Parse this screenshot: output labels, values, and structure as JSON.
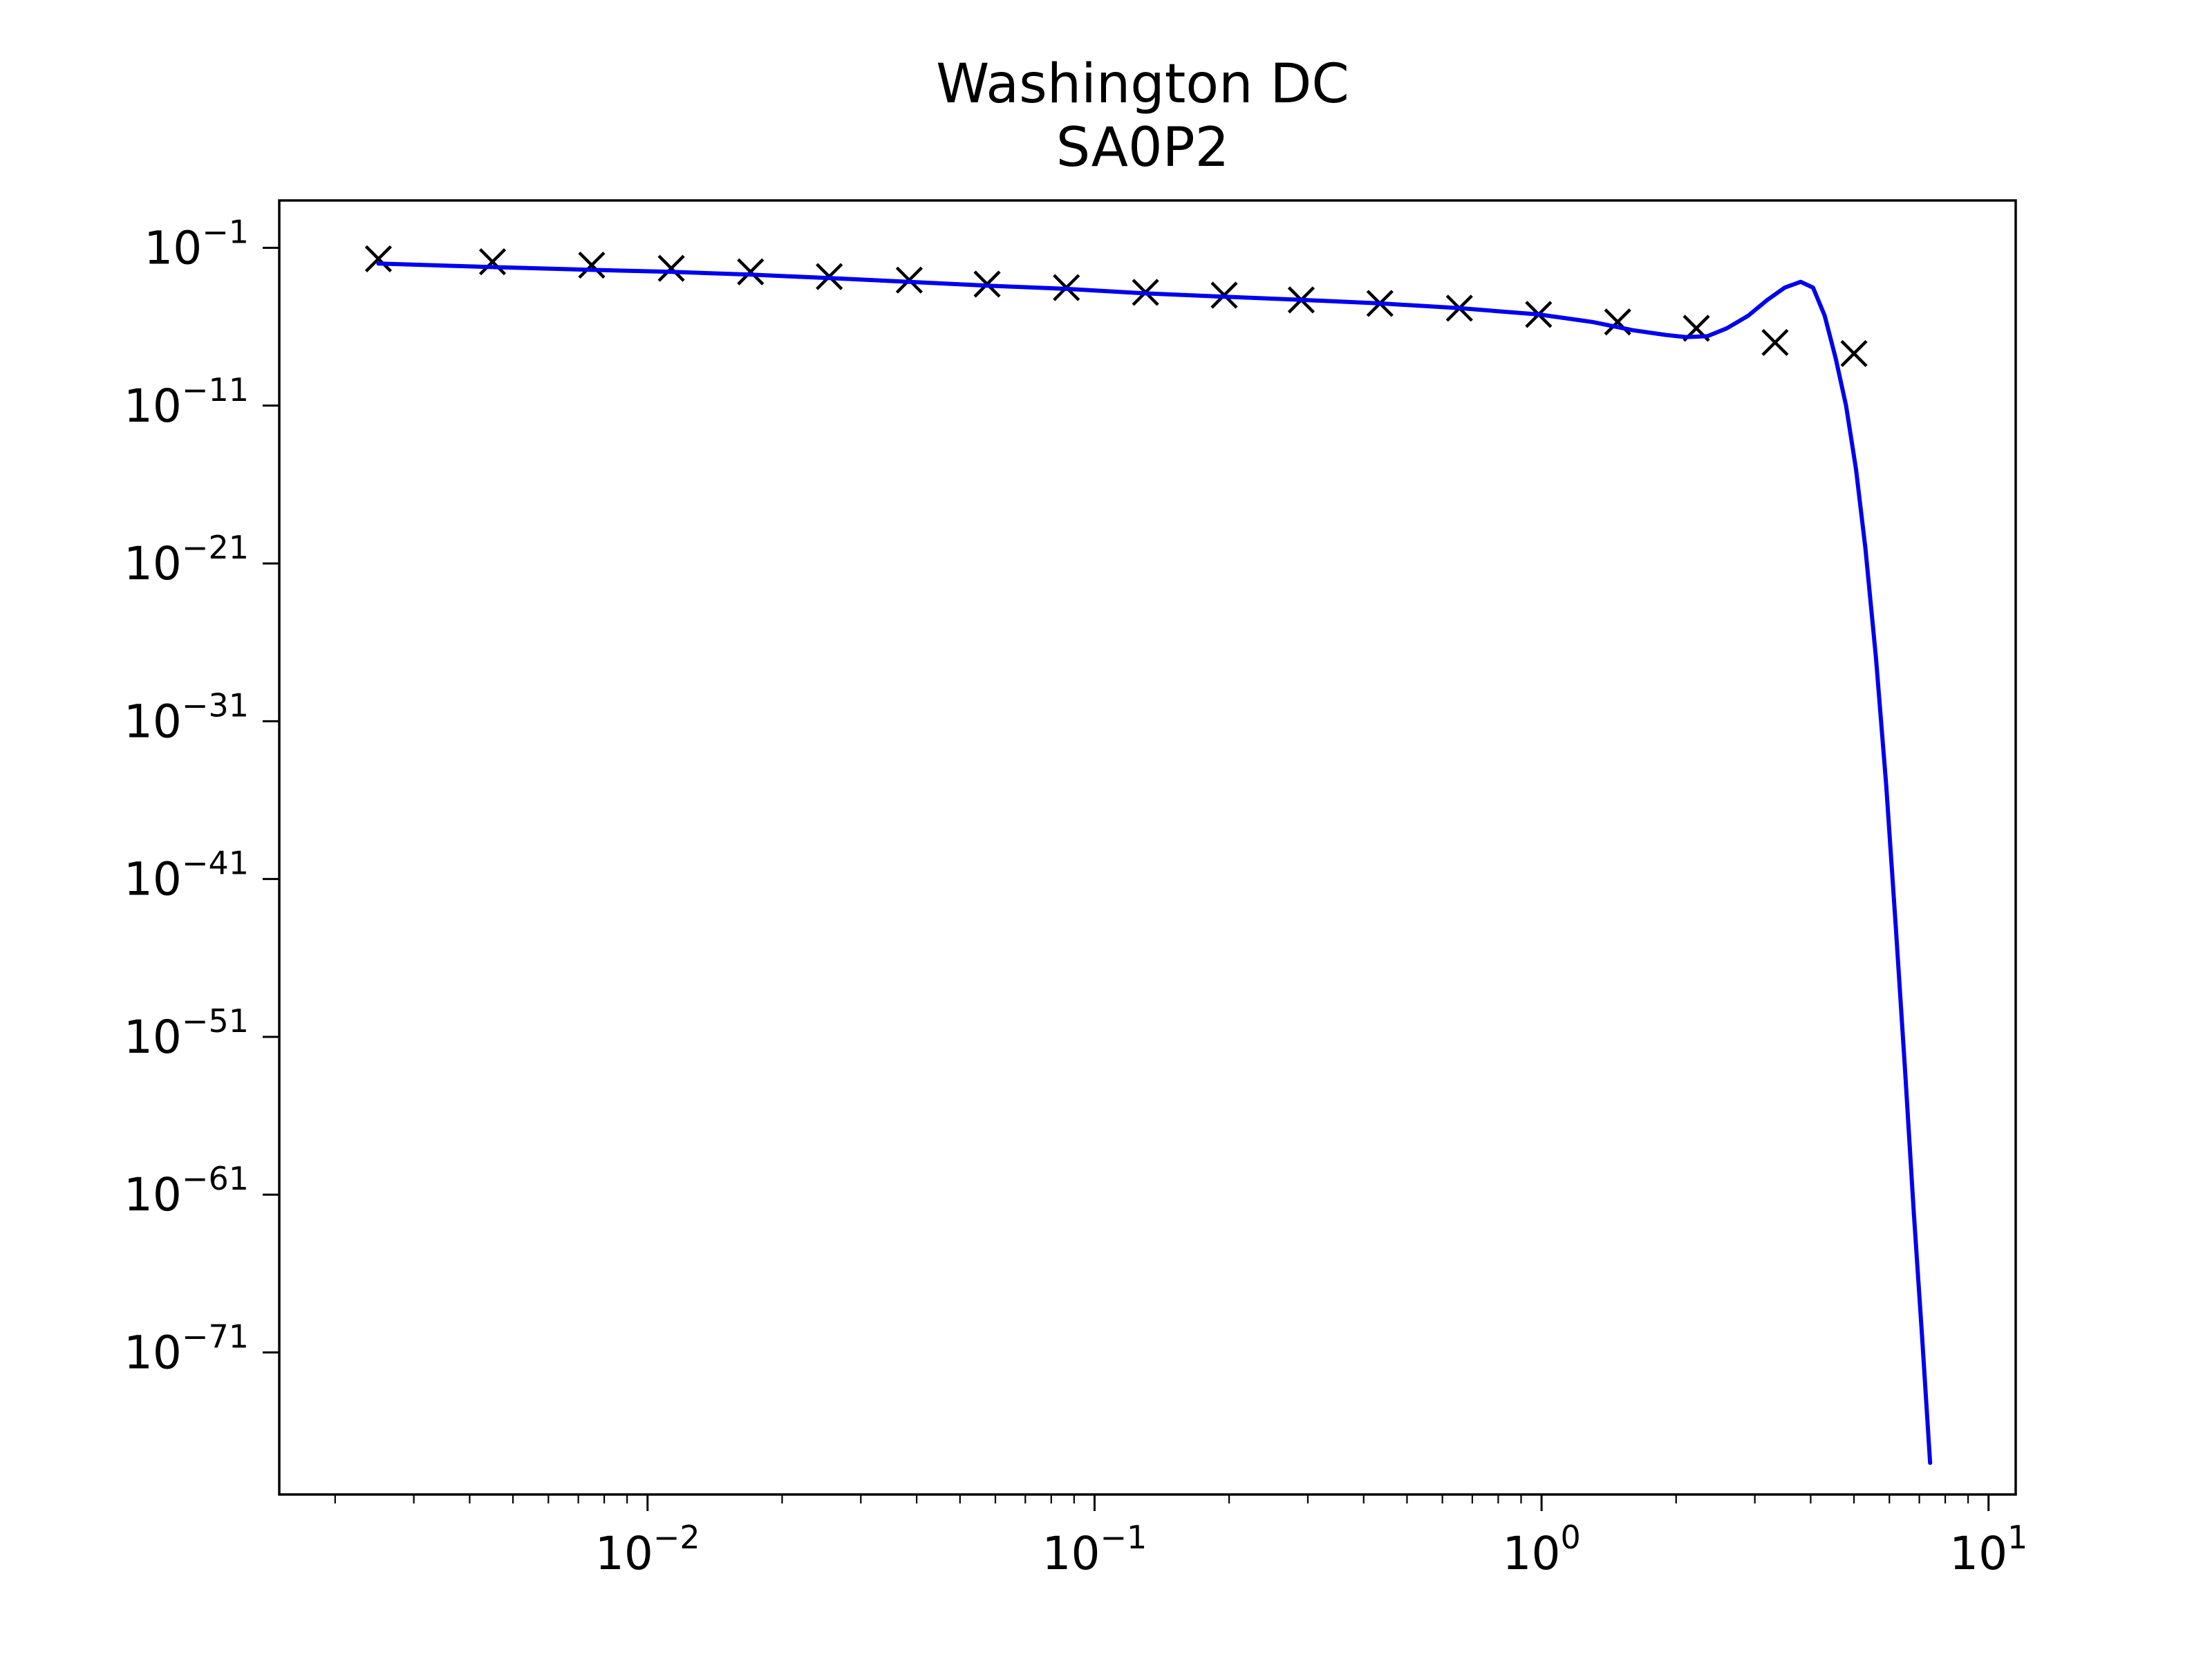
{
  "chart_data": {
    "type": "line",
    "title": "Washington DC",
    "subtitle": "SA0P2",
    "xlabel": "",
    "ylabel": "",
    "x_scale": "log",
    "y_scale": "log",
    "xlim": [
      0.0015,
      11.5
    ],
    "ylim": [
      1e-80,
      100.0
    ],
    "grid": false,
    "x_ticks": [
      {
        "base": "10",
        "exp": "−2",
        "value": 0.01
      },
      {
        "base": "10",
        "exp": "−1",
        "value": 0.1
      },
      {
        "base": "10",
        "exp": "0",
        "value": 1
      },
      {
        "base": "10",
        "exp": "1",
        "value": 10
      }
    ],
    "y_ticks": [
      {
        "base": "10",
        "exp": "−1",
        "value": 0.1
      },
      {
        "base": "10",
        "exp": "−11",
        "value": 1e-11
      },
      {
        "base": "10",
        "exp": "−21",
        "value": 1e-21
      },
      {
        "base": "10",
        "exp": "−31",
        "value": 1e-31
      },
      {
        "base": "10",
        "exp": "−41",
        "value": 1e-41
      },
      {
        "base": "10",
        "exp": "−51",
        "value": 1e-51
      },
      {
        "base": "10",
        "exp": "−61",
        "value": 1e-61
      },
      {
        "base": "10",
        "exp": "−71",
        "value": 1e-71
      }
    ],
    "series": [
      {
        "kind": "markers",
        "marker": "x",
        "color": "#000000",
        "x": [
          0.0025,
          0.0045,
          0.0075,
          0.0113,
          0.017,
          0.0255,
          0.0385,
          0.0575,
          0.0865,
          0.13,
          0.195,
          0.29,
          0.435,
          0.655,
          0.985,
          1.48,
          2.22,
          3.33,
          5.0
        ],
        "y": [
          0.02,
          0.013,
          0.008,
          0.005,
          0.003,
          0.0015,
          0.0009,
          0.0005,
          0.0003,
          0.00015,
          0.0001,
          5e-05,
          3e-05,
          1.5e-05,
          6e-06,
          2e-06,
          8e-07,
          1e-07,
          2e-08
        ]
      },
      {
        "kind": "line",
        "color": "#0000ee",
        "x": [
          0.0025,
          0.0045,
          0.0075,
          0.0113,
          0.017,
          0.0255,
          0.0385,
          0.0575,
          0.0865,
          0.13,
          0.195,
          0.29,
          0.435,
          0.655,
          0.985,
          1.3,
          1.6,
          1.9,
          2.1,
          2.35,
          2.6,
          2.9,
          3.2,
          3.5,
          3.8,
          4.05,
          4.3,
          4.55,
          4.8,
          5.05,
          5.3,
          5.6,
          5.9,
          6.2,
          6.5,
          6.8,
          7.1,
          7.4
        ],
        "y": [
          0.01,
          0.006,
          0.004,
          0.003,
          0.002,
          0.0012,
          0.0007,
          0.0004,
          0.00025,
          0.00013,
          8e-05,
          5e-05,
          3e-05,
          1.5e-05,
          6e-06,
          2e-06,
          6e-07,
          3e-07,
          2.2e-07,
          2.5e-07,
          8e-07,
          5e-06,
          5e-05,
          0.0003,
          0.0007,
          0.0003,
          5e-06,
          1e-08,
          1e-11,
          1e-15,
          1e-20,
          1e-27,
          1e-35,
          1e-44,
          1e-53,
          1e-62,
          1e-70,
          1e-78
        ]
      }
    ]
  }
}
